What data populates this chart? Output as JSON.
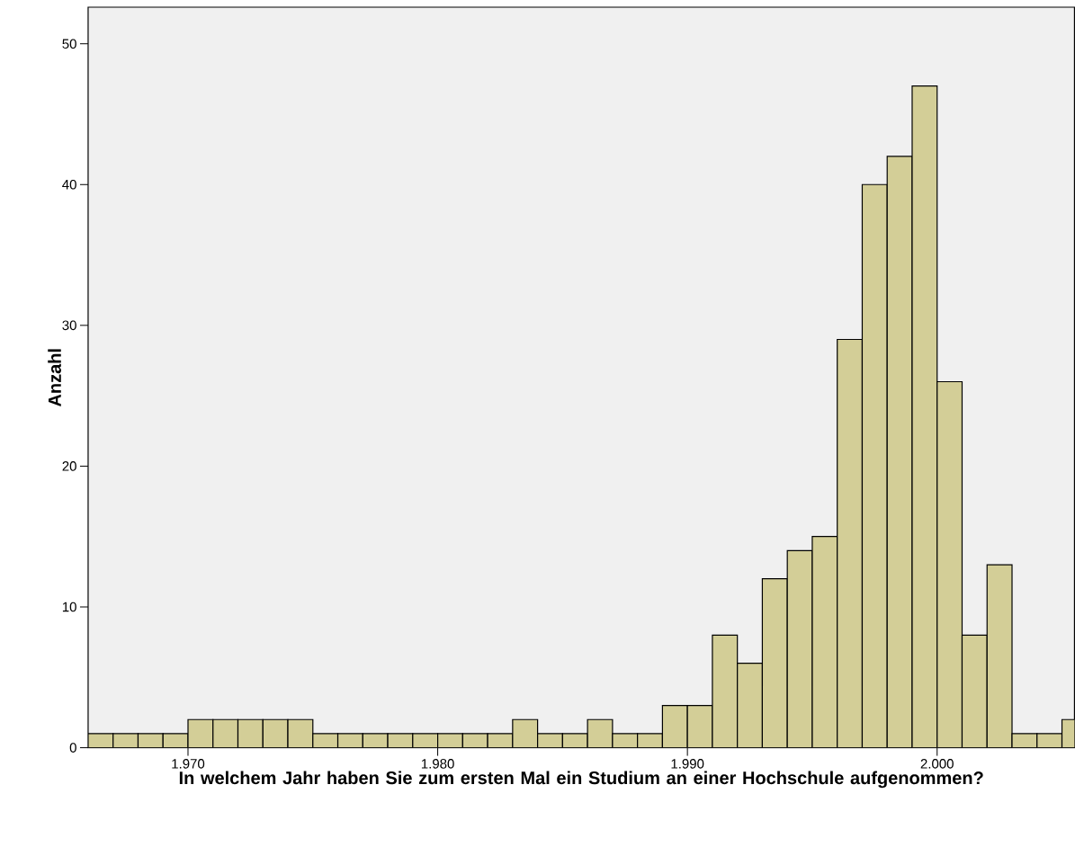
{
  "chart_data": {
    "type": "histogram",
    "xlabel": "In welchem Jahr haben Sie zum ersten Mal ein Studium an einer Hochschule aufgenommen?",
    "ylabel": "Anzahl",
    "bins": [
      1966,
      1967,
      1968,
      1969,
      1970,
      1971,
      1972,
      1973,
      1974,
      1975,
      1976,
      1977,
      1978,
      1979,
      1980,
      1981,
      1982,
      1983,
      1984,
      1985,
      1986,
      1987,
      1988,
      1989,
      1990,
      1991,
      1992,
      1993,
      1994,
      1995,
      1996,
      1997,
      1998,
      1999,
      2000,
      2001,
      2002,
      2003,
      2004,
      2005,
      2006
    ],
    "values": [
      1,
      1,
      1,
      1,
      2,
      2,
      2,
      2,
      2,
      1,
      1,
      1,
      1,
      1,
      1,
      1,
      1,
      2,
      1,
      1,
      2,
      1,
      1,
      3,
      3,
      8,
      6,
      12,
      14,
      15,
      29,
      40,
      42,
      47,
      26,
      8,
      13,
      1,
      1,
      2
    ],
    "color": "#d3ce97",
    "xlim": [
      1966,
      2005.5
    ],
    "ylim": [
      0,
      52.6
    ],
    "xticks": [
      {
        "value": 1970,
        "label": "1.970"
      },
      {
        "value": 1980,
        "label": "1.980"
      },
      {
        "value": 1990,
        "label": "1.990"
      },
      {
        "value": 2000,
        "label": "2.000"
      }
    ],
    "yticks": [
      0,
      10,
      20,
      30,
      40,
      50
    ]
  }
}
